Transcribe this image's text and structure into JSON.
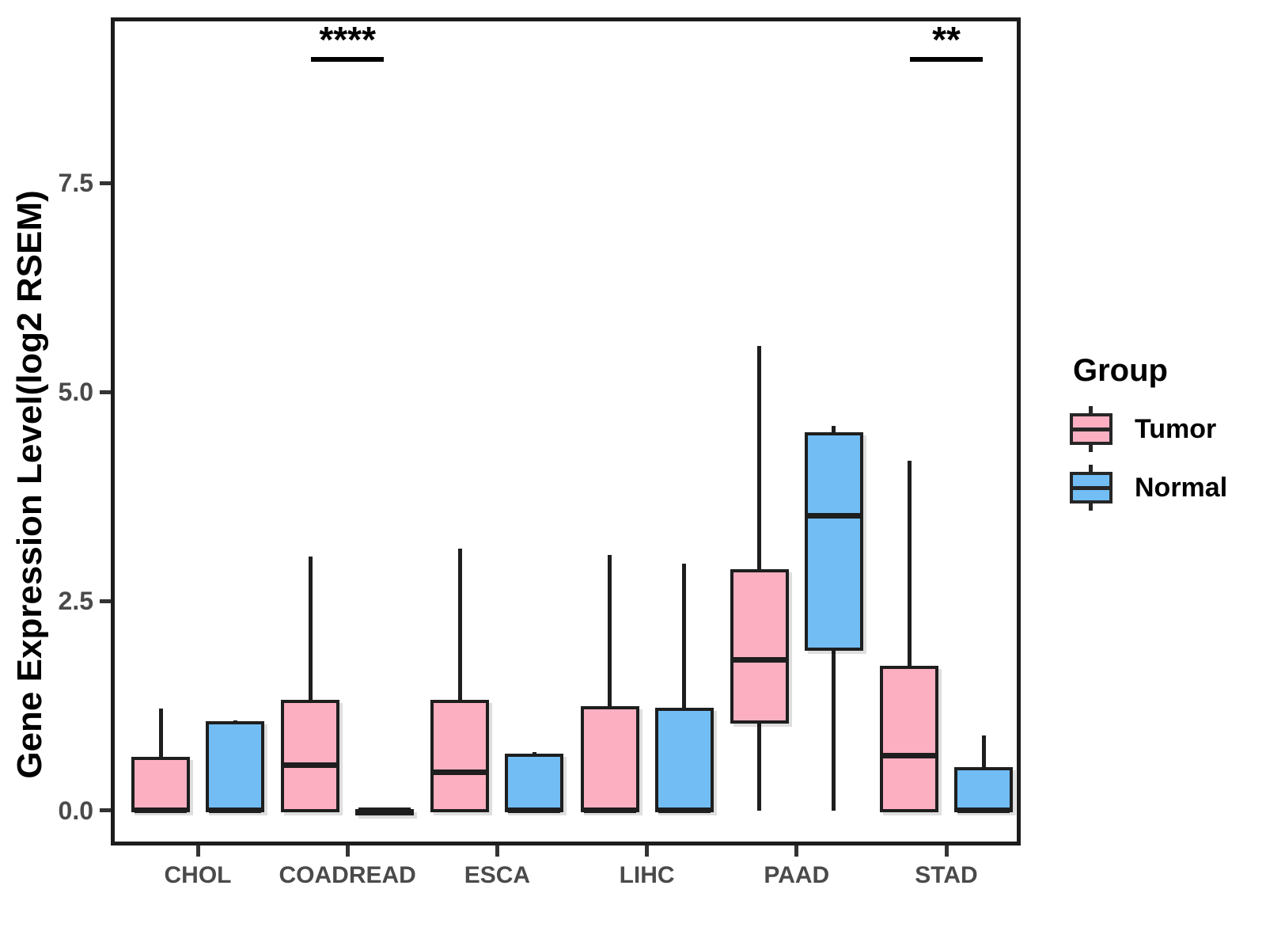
{
  "figure": {
    "background": "#FFFFFF"
  },
  "chart_data": {
    "type": "boxplot",
    "title": "",
    "ylabel": "Gene Expression Level(log2 RSEM)",
    "xlabel": "",
    "categories": [
      "CHOL",
      "COADREAD",
      "ESCA",
      "LIHC",
      "PAAD",
      "STAD"
    ],
    "groups": [
      {
        "name": "Tumor",
        "fill": "#FBAFC1"
      },
      {
        "name": "Normal",
        "fill": "#71BDF4"
      }
    ],
    "box_border_color": "#1E1E1E",
    "ylim": [
      -0.42,
      9.48
    ],
    "grid": false,
    "yticks": [
      {
        "value": 0.0,
        "label": "0.0"
      },
      {
        "value": 2.5,
        "label": "2.5"
      },
      {
        "value": 5.0,
        "label": "5.0"
      },
      {
        "value": 7.5,
        "label": "7.5"
      }
    ],
    "series": [
      {
        "group": "Tumor",
        "boxes": [
          {
            "category": "CHOL",
            "min": 0,
            "q1": 0,
            "median": 0,
            "q3": 0.62,
            "max": 1.22
          },
          {
            "category": "COADREAD",
            "min": 0,
            "q1": 0,
            "median": 0.54,
            "q3": 1.3,
            "max": 3.03
          },
          {
            "category": "ESCA",
            "min": 0,
            "q1": 0,
            "median": 0.46,
            "q3": 1.3,
            "max": 3.13
          },
          {
            "category": "LIHC",
            "min": 0,
            "q1": 0,
            "median": 0,
            "q3": 1.23,
            "max": 3.05
          },
          {
            "category": "PAAD",
            "min": 0,
            "q1": 1.06,
            "median": 1.8,
            "q3": 2.86,
            "max": 5.55
          },
          {
            "category": "STAD",
            "min": 0,
            "q1": 0,
            "median": 0.65,
            "q3": 1.71,
            "max": 4.18
          }
        ]
      },
      {
        "group": "Normal",
        "boxes": [
          {
            "category": "CHOL",
            "min": 0,
            "q1": 0,
            "median": 0,
            "q3": 1.05,
            "max": 1.08
          },
          {
            "category": "COADREAD",
            "min": 0,
            "q1": 0,
            "median": 0,
            "q3": 0,
            "max": 0
          },
          {
            "category": "ESCA",
            "min": 0,
            "q1": 0,
            "median": 0,
            "q3": 0.66,
            "max": 0.7
          },
          {
            "category": "LIHC",
            "min": 0,
            "q1": 0,
            "median": 0,
            "q3": 1.21,
            "max": 2.95
          },
          {
            "category": "PAAD",
            "min": 0,
            "q1": 1.93,
            "median": 3.52,
            "q3": 4.5,
            "max": 4.6
          },
          {
            "category": "STAD",
            "min": 0,
            "q1": 0,
            "median": 0,
            "q3": 0.5,
            "max": 0.9
          }
        ]
      }
    ],
    "annotations": [
      {
        "category": "COADREAD",
        "text": "****"
      },
      {
        "category": "STAD",
        "text": "**"
      }
    ],
    "legend": {
      "title": "Group",
      "position": "right",
      "items": [
        {
          "label": "Tumor",
          "fill": "#FBAFC1"
        },
        {
          "label": "Normal",
          "fill": "#71BDF4"
        }
      ]
    }
  }
}
